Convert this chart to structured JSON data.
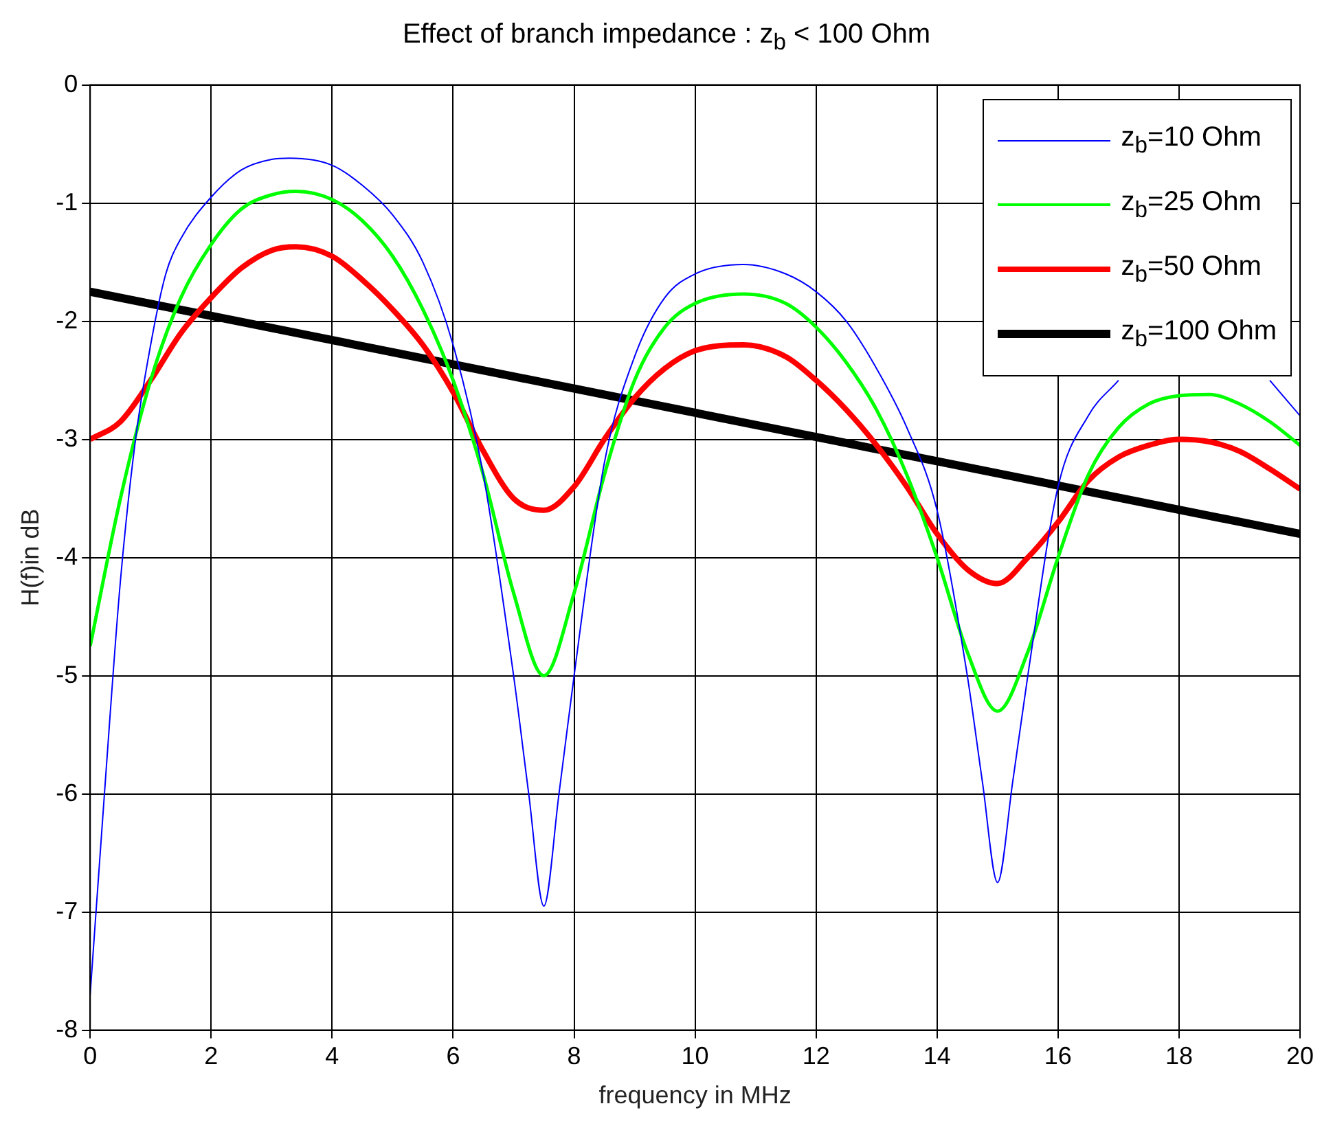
{
  "chart_data": {
    "type": "line",
    "title": "Effect of branch impedance : z$_{b}$ < 100 Ohm",
    "xlabel": "frequency in MHz",
    "ylabel": "H(f)in dB",
    "xlim": [
      0,
      20
    ],
    "ylim": [
      -8,
      0
    ],
    "xticks": [
      0,
      2,
      4,
      6,
      8,
      10,
      12,
      14,
      16,
      18,
      20
    ],
    "yticks": [
      -8,
      -7,
      -6,
      -5,
      -4,
      -3,
      -2,
      -1,
      0
    ],
    "grid": true,
    "legend": "top right",
    "marker": "none",
    "line_style": "solid",
    "series": [
      {
        "name": "z$_{b}$=10 Ohm",
        "color": "#0000ff",
        "x": [
          0,
          0.25,
          0.5,
          0.75,
          1,
          1.25,
          1.5,
          2,
          2.5,
          3,
          3.3,
          4,
          4.5,
          5,
          5.5,
          6,
          6.5,
          7,
          7.25,
          7.5,
          7.75,
          8,
          8.5,
          9,
          9.5,
          10,
          10.8,
          11.5,
          12,
          12.5,
          13,
          13.5,
          14,
          14.5,
          14.75,
          15,
          15.25,
          15.5,
          16,
          16.5,
          17,
          17.5,
          18,
          18.5,
          19,
          19.5,
          20
        ],
        "values": [
          -7.7,
          -5.9,
          -4.2,
          -3.0,
          -2.2,
          -1.6,
          -1.3,
          -0.95,
          -0.72,
          -0.63,
          -0.62,
          -0.68,
          -0.85,
          -1.1,
          -1.5,
          -2.2,
          -3.3,
          -5.0,
          -6.0,
          -6.95,
          -6.0,
          -5.0,
          -3.2,
          -2.3,
          -1.8,
          -1.6,
          -1.52,
          -1.6,
          -1.75,
          -2.0,
          -2.4,
          -2.9,
          -3.6,
          -5.0,
          -5.9,
          -6.75,
          -5.9,
          -5.0,
          -3.4,
          -2.8,
          -2.5,
          null,
          null,
          null,
          null,
          -2.5,
          -2.8
        ]
      },
      {
        "name": "z$_{b}$=25 Ohm",
        "color": "#00ff00",
        "x": [
          0,
          0.5,
          1,
          1.5,
          2,
          2.5,
          3,
          3.4,
          4,
          4.5,
          5,
          5.5,
          6,
          6.5,
          7,
          7.5,
          8,
          8.5,
          9,
          9.5,
          10,
          10.8,
          11.5,
          12,
          12.5,
          13,
          13.5,
          14,
          14.5,
          15,
          15.5,
          16,
          16.5,
          17,
          17.5,
          18,
          18.5,
          19,
          19.5,
          20
        ],
        "values": [
          -4.75,
          -3.5,
          -2.5,
          -1.8,
          -1.35,
          -1.05,
          -0.93,
          -0.9,
          -0.97,
          -1.15,
          -1.45,
          -1.9,
          -2.5,
          -3.3,
          -4.3,
          -5.0,
          -4.3,
          -3.3,
          -2.5,
          -2.05,
          -1.85,
          -1.77,
          -1.85,
          -2.05,
          -2.35,
          -2.75,
          -3.3,
          -4.0,
          -4.8,
          -5.3,
          -4.8,
          -4.0,
          -3.3,
          -2.9,
          -2.7,
          -2.63,
          -2.62,
          -2.7,
          -2.85,
          -3.05
        ]
      },
      {
        "name": "z$_{b}$=50 Ohm",
        "color": "#ff0000",
        "x": [
          0,
          0.5,
          1,
          1.5,
          2,
          2.5,
          3,
          3.4,
          4,
          4.5,
          5,
          5.5,
          6,
          6.5,
          7,
          7.5,
          8,
          8.5,
          9,
          9.5,
          10,
          10.8,
          11.5,
          12,
          12.5,
          13,
          13.5,
          14,
          14.5,
          15,
          15.5,
          16,
          16.5,
          17,
          17.5,
          18,
          18.5,
          19,
          19.5,
          20
        ],
        "values": [
          -3.0,
          -2.85,
          -2.5,
          -2.1,
          -1.8,
          -1.55,
          -1.4,
          -1.37,
          -1.45,
          -1.65,
          -1.9,
          -2.2,
          -2.6,
          -3.1,
          -3.5,
          -3.6,
          -3.4,
          -3.0,
          -2.65,
          -2.4,
          -2.25,
          -2.2,
          -2.3,
          -2.5,
          -2.75,
          -3.05,
          -3.4,
          -3.8,
          -4.1,
          -4.22,
          -4.0,
          -3.7,
          -3.35,
          -3.15,
          -3.05,
          -3.0,
          -3.02,
          -3.1,
          -3.25,
          -3.42
        ]
      },
      {
        "name": "z$_{b}$=100 Ohm",
        "color": "#000000",
        "x": [
          0,
          20
        ],
        "values": [
          -1.75,
          -3.8
        ]
      }
    ]
  }
}
